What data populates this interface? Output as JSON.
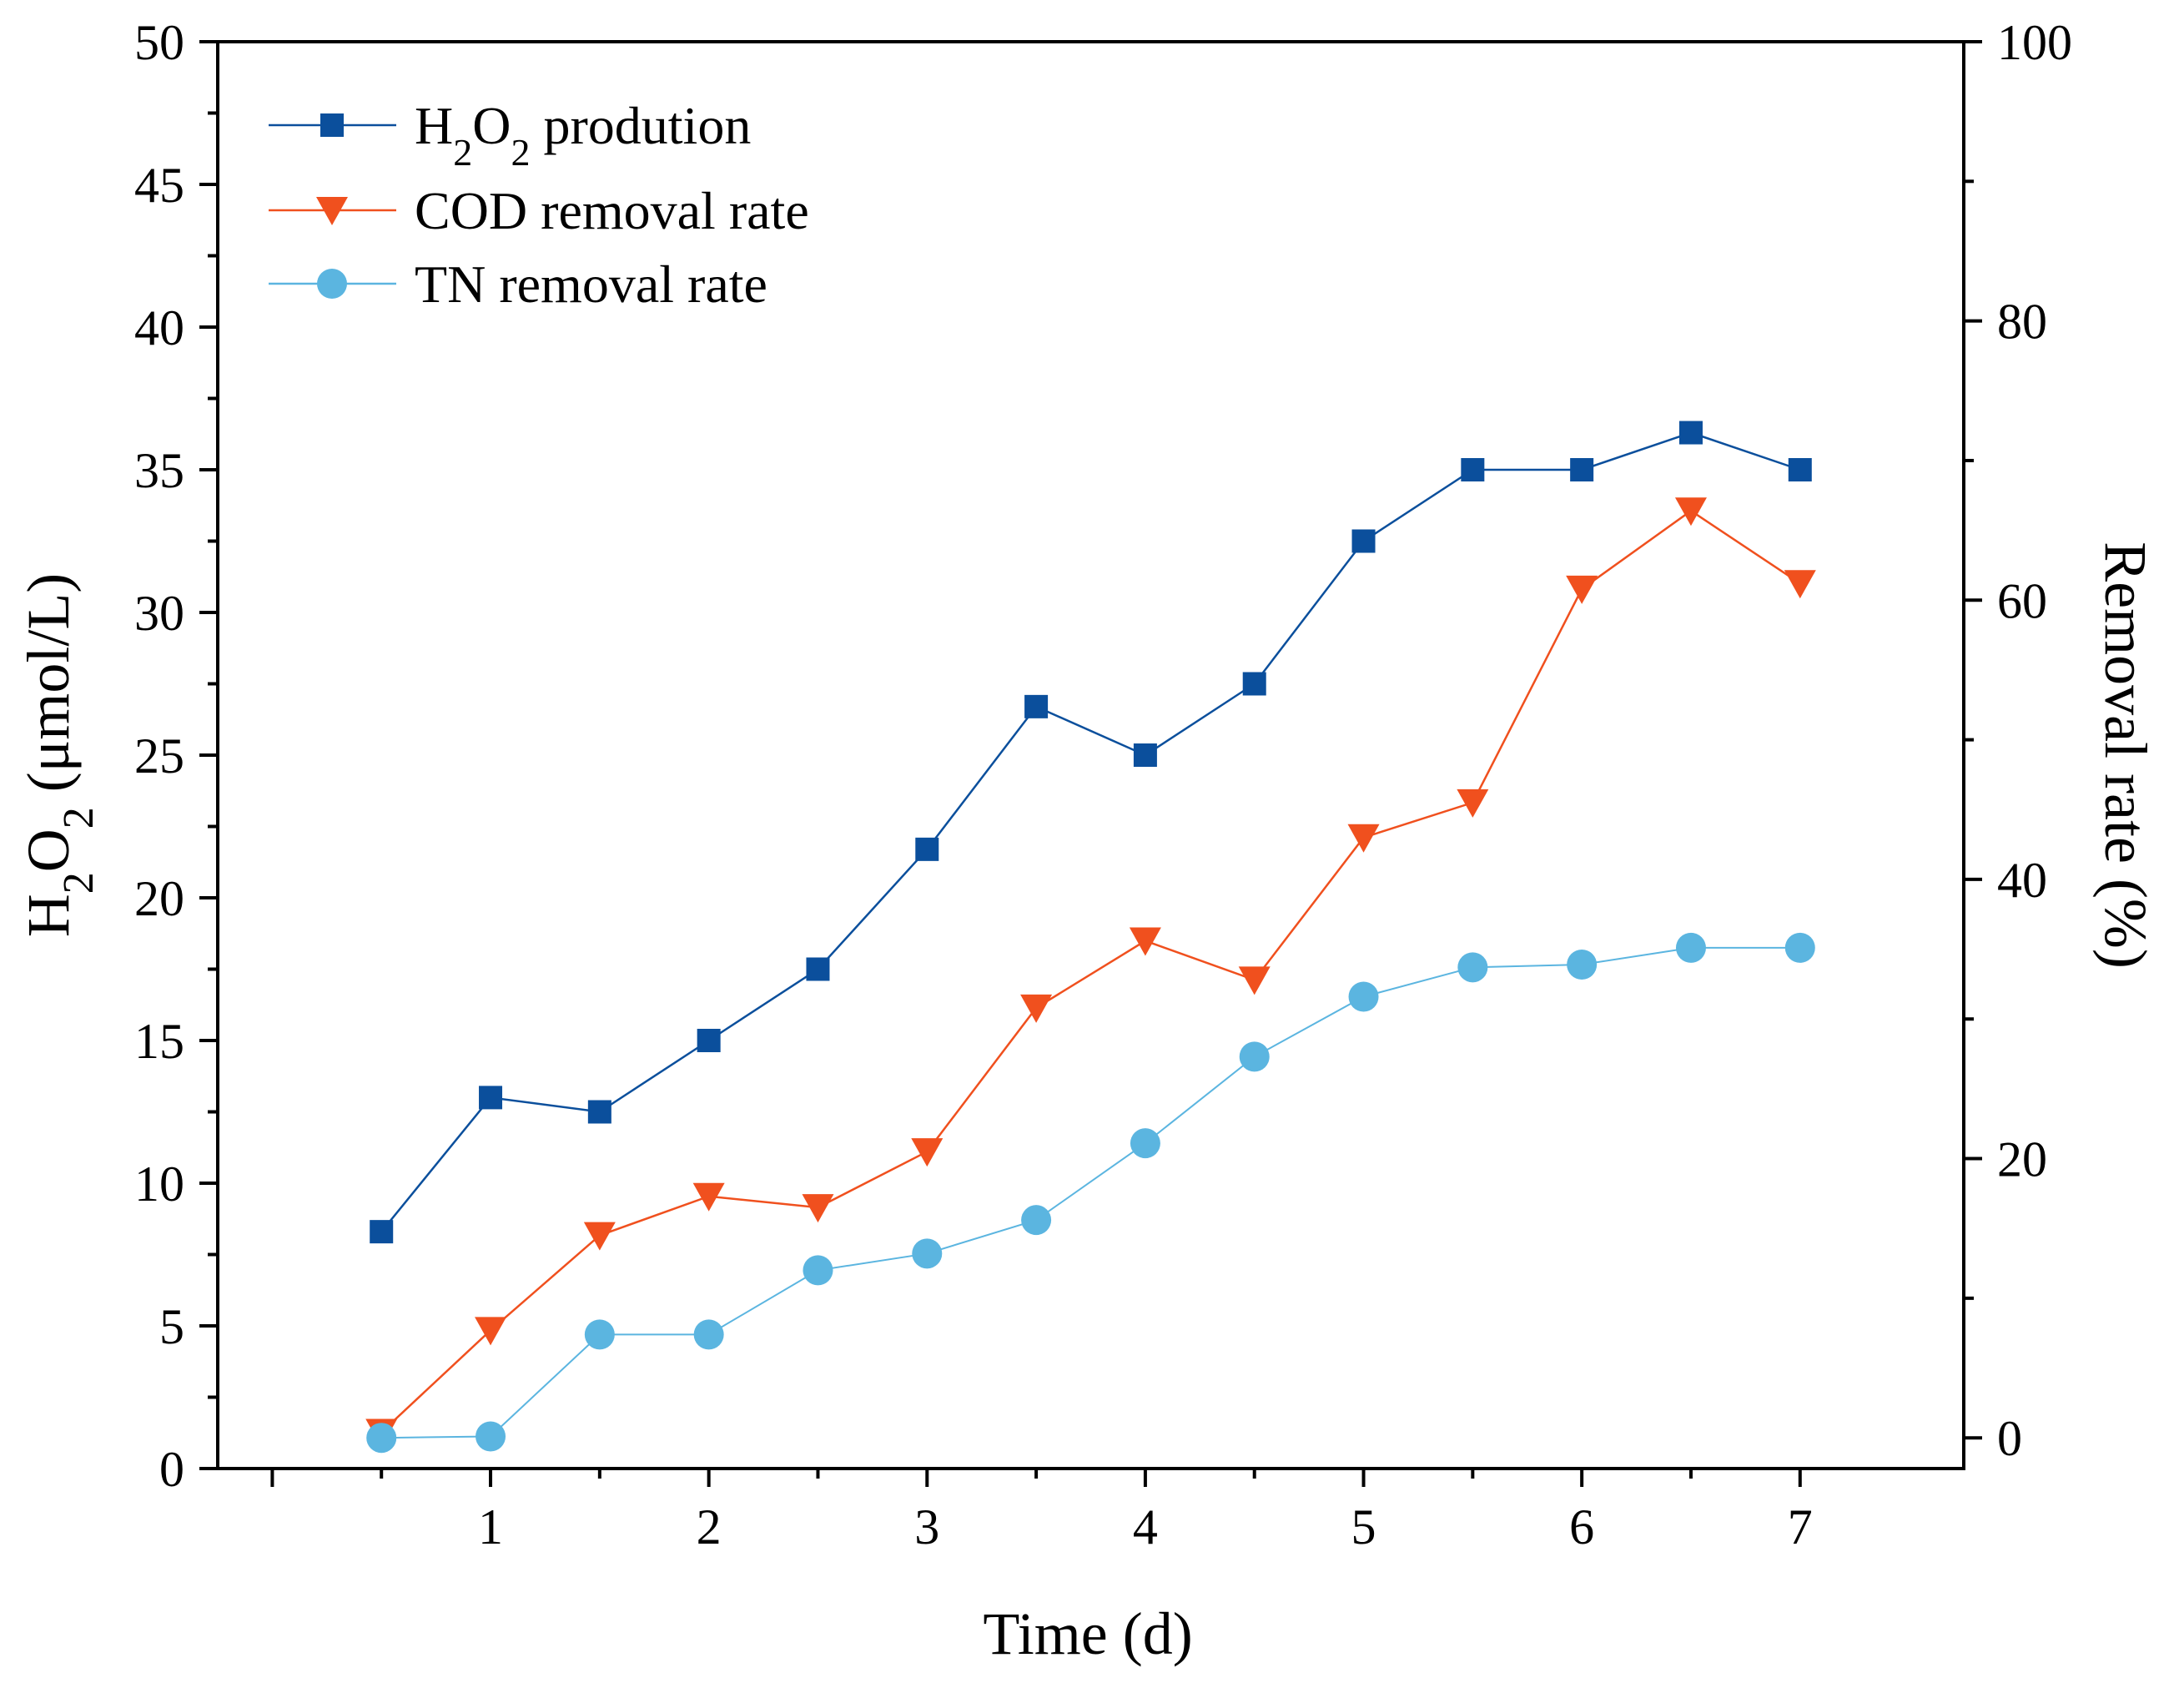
{
  "chart_data": {
    "type": "line",
    "x": [
      0.5,
      1,
      1.5,
      2,
      2.5,
      3,
      3.5,
      4,
      4.5,
      5,
      5.5,
      6,
      6.5,
      7
    ],
    "xlabel": "Time (d)",
    "xlim": [
      -0.25,
      7.75
    ],
    "xticks": [
      1,
      2,
      3,
      4,
      5,
      6,
      7
    ],
    "ylabel_left": {
      "main": "H",
      "sub1": "2",
      "mid": "O",
      "sub2": "2",
      "rest": " (μmol/L)"
    },
    "ylim_left": [
      0,
      50
    ],
    "yticks_left": [
      0,
      5,
      10,
      15,
      20,
      25,
      30,
      35,
      40,
      45,
      50
    ],
    "ylabel_right": "Removal rate (%)",
    "ylim_right": [
      -2.2,
      100
    ],
    "yticks_right": [
      0,
      20,
      40,
      60,
      80,
      100
    ],
    "series": [
      {
        "name": "H2O2 prodution",
        "legend": {
          "main": "H",
          "sub1": "2",
          "mid": "O",
          "sub2": "2",
          "rest": " prodution"
        },
        "axis": "left",
        "marker": "square",
        "color": "#0B4F9C",
        "values": [
          8.3,
          13.0,
          12.5,
          15.0,
          17.5,
          21.7,
          26.7,
          25.0,
          27.5,
          32.5,
          35.0,
          35.0,
          36.3,
          35.0
        ]
      },
      {
        "name": "COD removal rate",
        "legend": {
          "main": "COD removal rate"
        },
        "axis": "right",
        "marker": "triangle-down",
        "color": "#F0501E",
        "values": [
          0.4,
          7.7,
          14.5,
          17.3,
          16.5,
          20.5,
          30.8,
          35.6,
          32.8,
          43.0,
          45.5,
          60.8,
          66.4,
          61.2
        ]
      },
      {
        "name": "TN removal rate",
        "legend": {
          "main": "TN removal rate"
        },
        "axis": "right",
        "marker": "circle",
        "color": "#5BB5E0",
        "values": [
          0.0,
          0.1,
          7.4,
          7.4,
          12.0,
          13.2,
          15.6,
          21.1,
          27.3,
          31.6,
          33.7,
          33.9,
          35.1,
          35.1
        ]
      }
    ]
  }
}
